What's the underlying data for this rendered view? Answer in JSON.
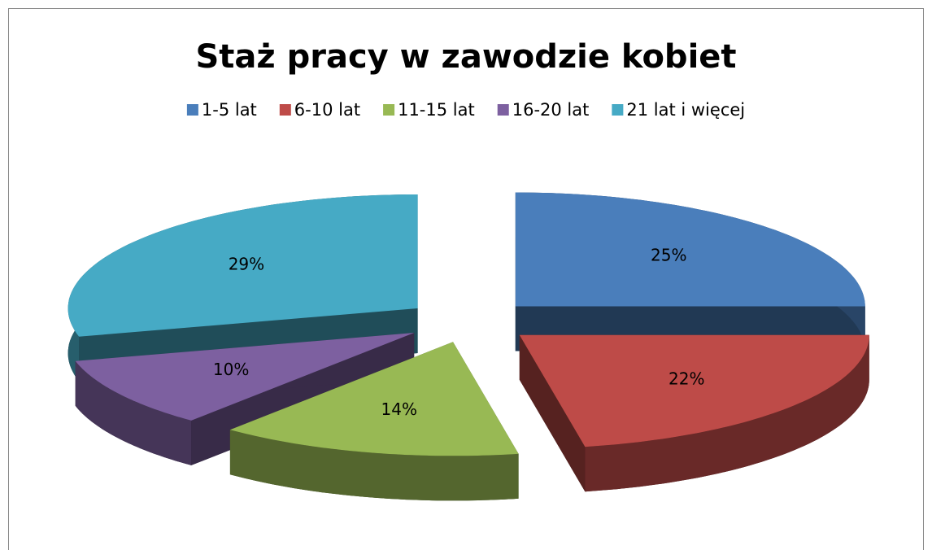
{
  "chart_data": {
    "type": "pie",
    "title": "Staż pracy w zawodzie kobiet",
    "categories": [
      "1-5 lat",
      "6-10 lat",
      "11-15 lat",
      "16-20 lat",
      "21 lat i więcej"
    ],
    "values": [
      25,
      22,
      14,
      10,
      29
    ],
    "value_labels": [
      "25%",
      "22%",
      "14%",
      "10%",
      "29%"
    ],
    "colors": [
      "#4a7ebb",
      "#be4b48",
      "#98b954",
      "#7d60a0",
      "#46aac5"
    ],
    "legend": "top"
  }
}
